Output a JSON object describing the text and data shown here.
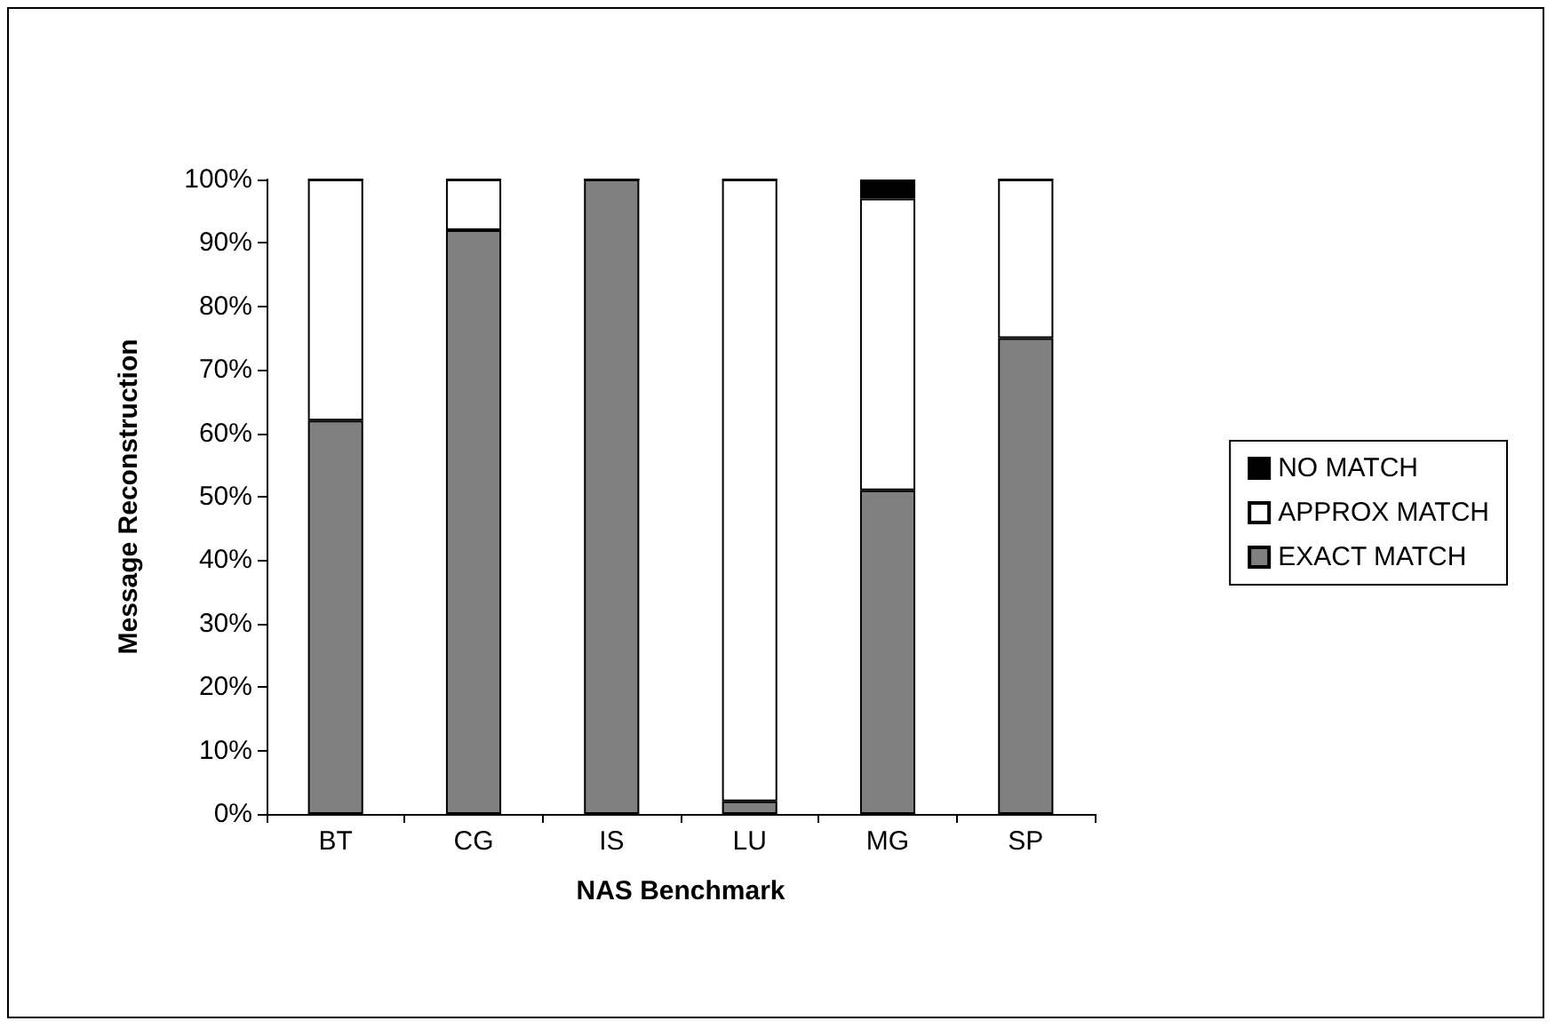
{
  "chart_data": {
    "type": "bar",
    "stacked": true,
    "xlabel": "NAS Benchmark",
    "ylabel": "Message Reconstruction",
    "categories": [
      "BT",
      "CG",
      "IS",
      "LU",
      "MG",
      "SP"
    ],
    "series": [
      {
        "name": "EXACT MATCH",
        "color": "#808080",
        "values": [
          62,
          92,
          100,
          2,
          51,
          75
        ]
      },
      {
        "name": "APPROX MATCH",
        "color": "#ffffff",
        "values": [
          38,
          8,
          0,
          98,
          46,
          25
        ]
      },
      {
        "name": "NO MATCH",
        "color": "#000000",
        "values": [
          0,
          0,
          0,
          0,
          3,
          0
        ]
      }
    ],
    "ylim": [
      0,
      100
    ],
    "yticks": [
      {
        "value": 0,
        "label": "0%"
      },
      {
        "value": 10,
        "label": "10%"
      },
      {
        "value": 20,
        "label": "20%"
      },
      {
        "value": 30,
        "label": "30%"
      },
      {
        "value": 40,
        "label": "40%"
      },
      {
        "value": 50,
        "label": "50%"
      },
      {
        "value": 60,
        "label": "60%"
      },
      {
        "value": 70,
        "label": "70%"
      },
      {
        "value": 80,
        "label": "80%"
      },
      {
        "value": 90,
        "label": "90%"
      },
      {
        "value": 100,
        "label": "100%"
      }
    ],
    "grid": false,
    "legend": "right"
  }
}
